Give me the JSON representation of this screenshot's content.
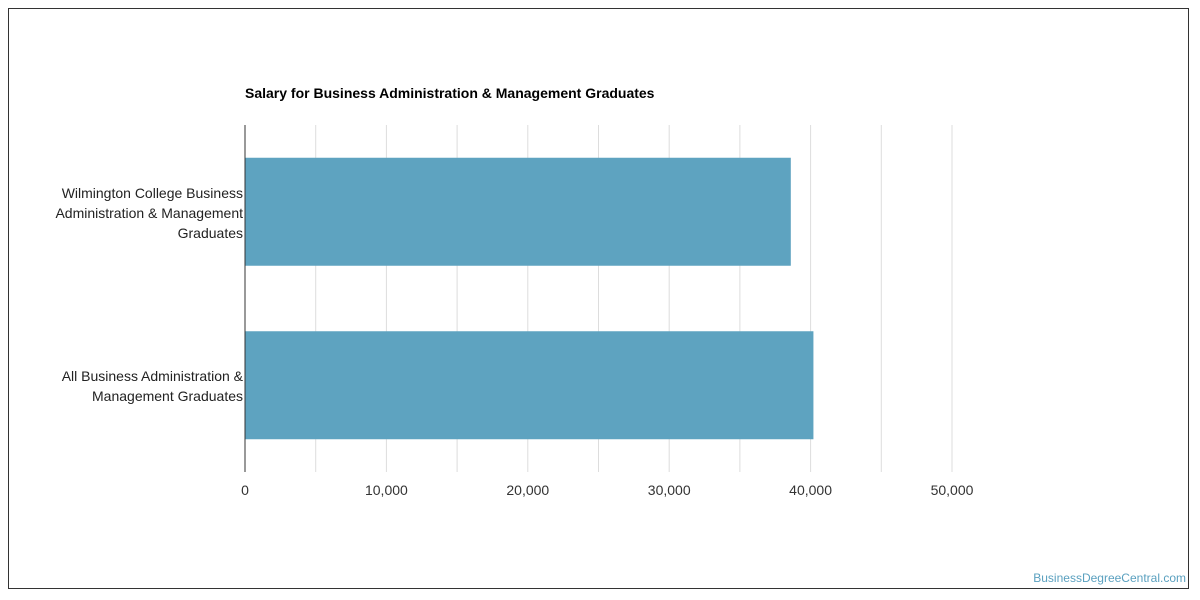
{
  "chart_data": {
    "type": "bar",
    "orientation": "horizontal",
    "title": "Salary for Business Administration & Management Graduates",
    "categories": [
      "Wilmington College Business Administration & Management Graduates",
      "All Business Administration & Management Graduates"
    ],
    "values": [
      38600,
      40200
    ],
    "xlim": [
      0,
      50000
    ],
    "x_ticks": [
      0,
      10000,
      20000,
      30000,
      40000,
      50000
    ],
    "x_tick_labels": [
      "0",
      "10,000",
      "20,000",
      "30,000",
      "40,000",
      "50,000"
    ],
    "bar_color": "#5ea3c0",
    "grid": true
  },
  "watermark": "BusinessDegreeCentral.com"
}
